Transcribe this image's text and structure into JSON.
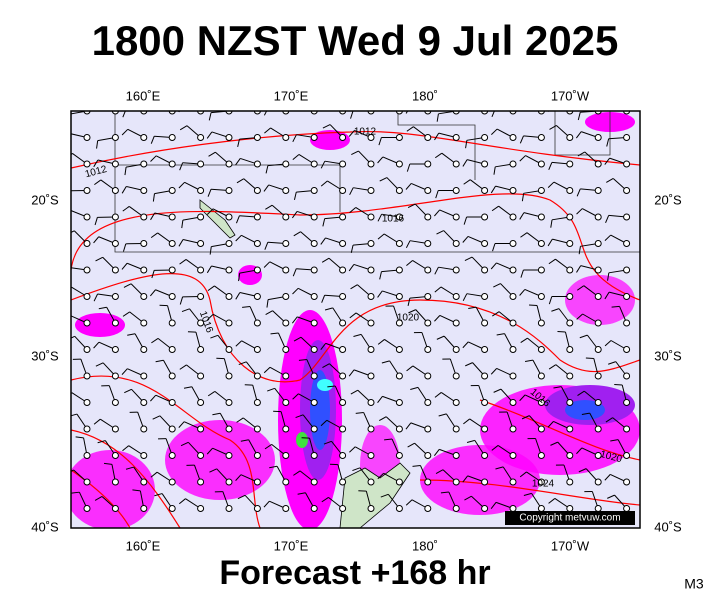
{
  "title": "1800 NZST Wed 9 Jul 2025",
  "top_axis_labels": [
    "160˚E",
    "170˚E",
    "180˚",
    "170˚W"
  ],
  "bottom_axis_labels": [
    "160˚E",
    "170˚E",
    "180˚",
    "170˚W"
  ],
  "left_axis_labels": [
    "20˚S",
    "30˚S",
    "40˚S"
  ],
  "right_axis_labels": [
    "20˚S",
    "30˚S",
    "40˚S"
  ],
  "isobar_labels": [
    "1012",
    "1012",
    "1016",
    "1016",
    "1020",
    "1016",
    "1020",
    "1024"
  ],
  "copyright": "Copyright metvuw.com",
  "footer": "Forecast +168 hr",
  "model_tag": "M3"
}
